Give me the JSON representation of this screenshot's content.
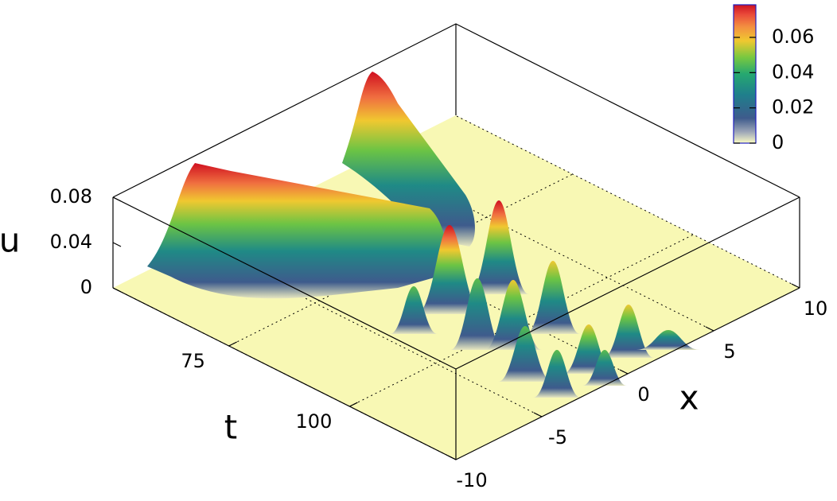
{
  "chart_data": {
    "type": "surface3d",
    "xlabel": "x",
    "ylabel": "t",
    "zlabel": "u",
    "xlim": [
      -10,
      10
    ],
    "xticks": [
      -10,
      -5,
      0,
      5,
      10
    ],
    "ylim": [
      51,
      122
    ],
    "yticks": [
      75,
      100
    ],
    "zlim": [
      0,
      0.08
    ],
    "zticks": [
      0,
      0.04,
      0.08
    ],
    "colorbar": {
      "lim": [
        0,
        0.0785
      ],
      "ticks": [
        0,
        0.02,
        0.04,
        0.06
      ]
    }
  }
}
